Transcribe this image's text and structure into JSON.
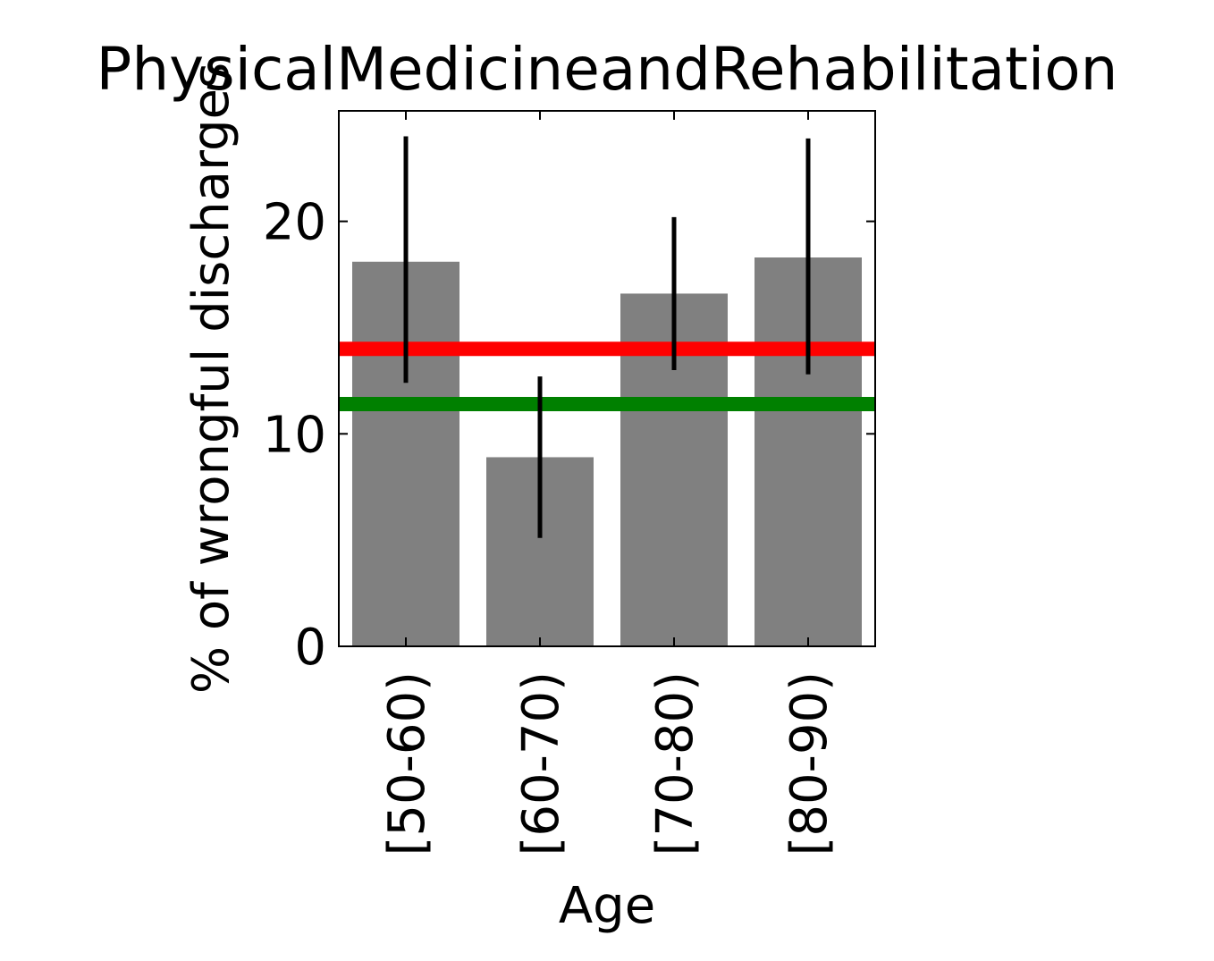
{
  "chart_data": {
    "type": "bar",
    "title": "PhysicalMedicineandRehabilitation",
    "xlabel": "Age",
    "ylabel": "% of wrongful discharges",
    "categories": [
      "[50-60)",
      "[60-70)",
      "[70-80)",
      "[80-90)"
    ],
    "values": [
      18.1,
      8.9,
      16.6,
      18.3
    ],
    "error_low": [
      12.4,
      5.1,
      13.0,
      12.8
    ],
    "error_high": [
      24.0,
      12.7,
      20.2,
      23.9
    ],
    "yticks": [
      "0",
      "10",
      "20"
    ],
    "ylim": [
      0,
      25.2
    ],
    "reference_lines": [
      {
        "value": 14.0,
        "color": "#ff0000"
      },
      {
        "value": 11.4,
        "color": "#008000"
      }
    ],
    "bar_color": "#808080",
    "error_color": "#000000",
    "grid": false
  }
}
